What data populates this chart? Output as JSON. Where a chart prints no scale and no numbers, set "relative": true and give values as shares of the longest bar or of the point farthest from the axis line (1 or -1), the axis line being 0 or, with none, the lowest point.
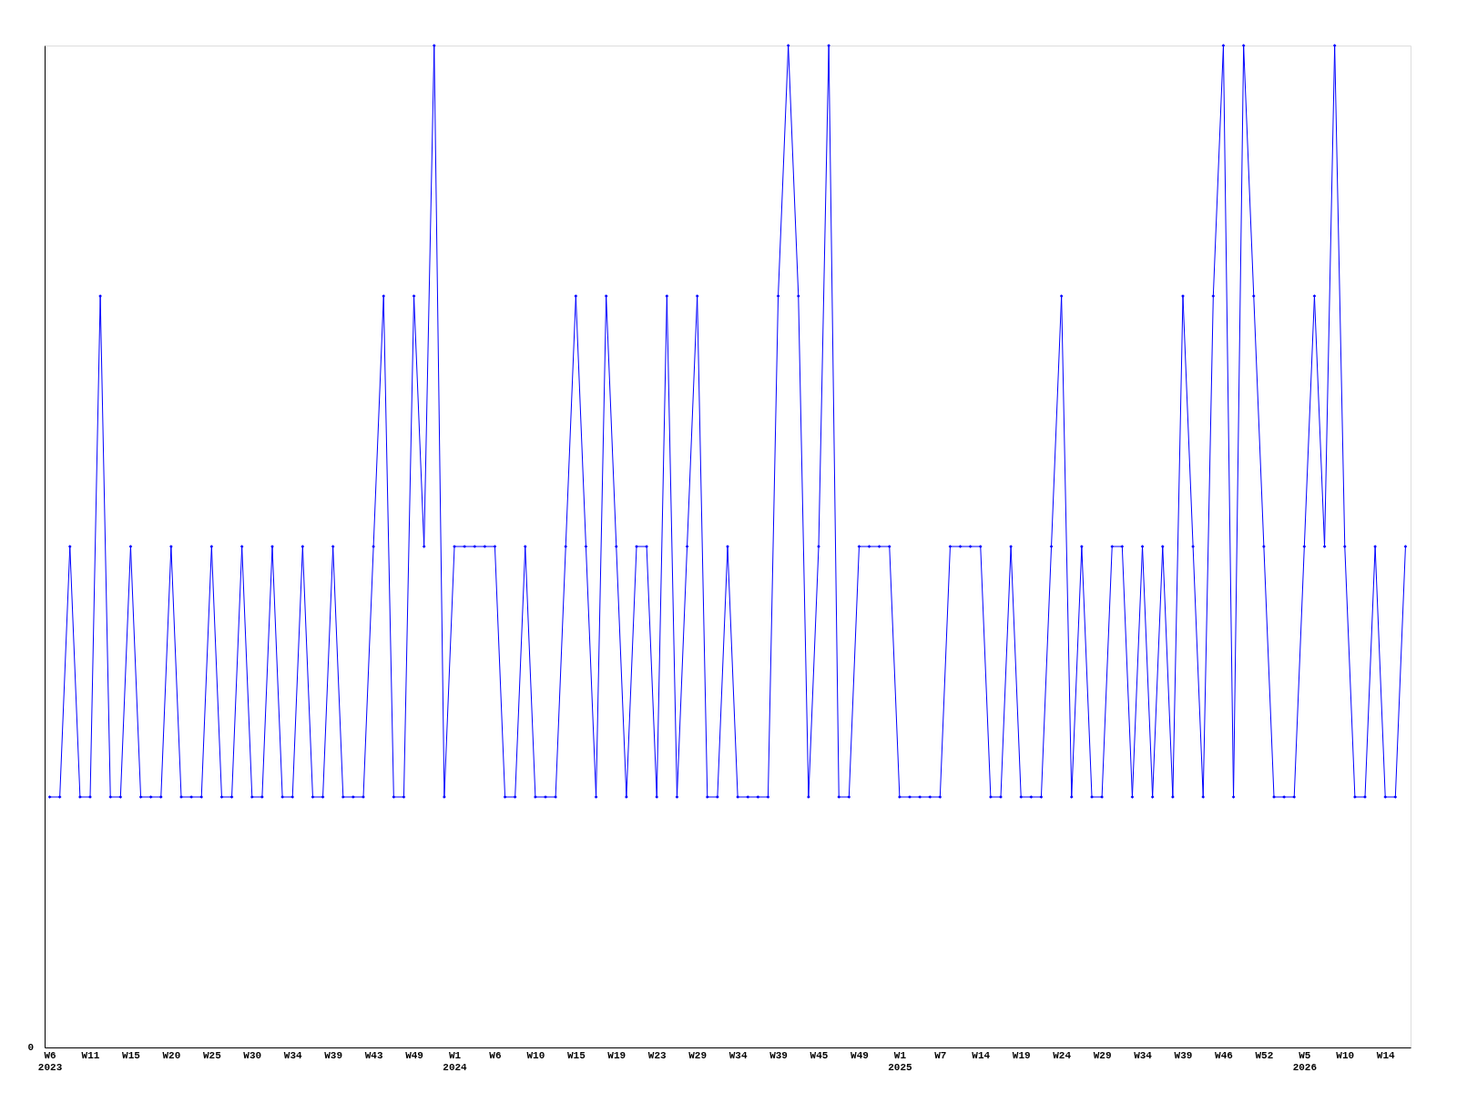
{
  "chart_data": {
    "type": "line",
    "relative": true,
    "annotations": [
      "0"
    ],
    "color": "#0000ff",
    "marker": "diamond",
    "line_style": "solid",
    "grid": false,
    "categories": [
      "W6\n2023",
      null,
      null,
      null,
      "W11",
      null,
      null,
      null,
      "W15",
      null,
      null,
      null,
      "W20",
      null,
      null,
      null,
      "W25",
      null,
      null,
      null,
      "W30",
      null,
      null,
      null,
      "W34",
      null,
      null,
      null,
      "W39",
      null,
      null,
      null,
      "W43",
      null,
      null,
      null,
      "W49",
      null,
      null,
      null,
      "W1\n2024",
      null,
      null,
      null,
      "W6",
      null,
      null,
      null,
      "W10",
      null,
      null,
      null,
      "W15",
      null,
      null,
      null,
      "W19",
      null,
      null,
      null,
      "W23",
      null,
      null,
      null,
      "W29",
      null,
      null,
      null,
      "W34",
      null,
      null,
      null,
      "W39",
      null,
      null,
      null,
      "W45",
      null,
      null,
      null,
      "W49",
      null,
      null,
      null,
      "W1\n2025",
      null,
      null,
      null,
      "W7",
      null,
      null,
      null,
      "W14",
      null,
      null,
      null,
      "W19",
      null,
      null,
      null,
      "W24",
      null,
      null,
      null,
      "W29",
      null,
      null,
      null,
      "W34",
      null,
      null,
      null,
      "W39",
      null,
      null,
      null,
      "W46",
      null,
      null,
      null,
      "W52",
      null,
      null,
      null,
      "W5\n2026",
      null,
      null,
      null,
      "W10",
      null,
      null,
      null,
      "W14",
      null,
      null
    ],
    "values": [
      0.25,
      0.25,
      0.5,
      0.25,
      0.25,
      0.75,
      0.25,
      0.25,
      0.5,
      0.25,
      0.25,
      0.25,
      0.5,
      0.25,
      0.25,
      0.25,
      0.5,
      0.25,
      0.25,
      0.5,
      0.25,
      0.25,
      0.5,
      0.25,
      0.25,
      0.5,
      0.25,
      0.25,
      0.5,
      0.25,
      0.25,
      0.25,
      0.5,
      0.75,
      0.25,
      0.25,
      0.75,
      0.5,
      1,
      0.25,
      0.5,
      0.5,
      0.5,
      0.5,
      0.5,
      0.25,
      0.25,
      0.5,
      0.25,
      0.25,
      0.25,
      0.5,
      0.75,
      0.5,
      0.25,
      0.75,
      0.5,
      0.25,
      0.5,
      0.5,
      0.25,
      0.75,
      0.25,
      0.5,
      0.75,
      0.25,
      0.25,
      0.5,
      0.25,
      0.25,
      0.25,
      0.25,
      0.75,
      1,
      0.75,
      0.25,
      0.5,
      1,
      0.25,
      0.25,
      0.5,
      0.5,
      0.5,
      0.5,
      0.25,
      0.25,
      0.25,
      0.25,
      0.25,
      0.5,
      0.5,
      0.5,
      0.5,
      0.25,
      0.25,
      0.5,
      0.25,
      0.25,
      0.25,
      0.5,
      0.75,
      0.25,
      0.5,
      0.25,
      0.25,
      0.5,
      0.5,
      0.25,
      0.5,
      0.25,
      0.5,
      0.25,
      0.75,
      0.5,
      0.25,
      0.75,
      1,
      0.25,
      1,
      0.75,
      0.5,
      0.25,
      0.25,
      0.25,
      0.5,
      0.75,
      0.5,
      1,
      0.5,
      0.25,
      0.25,
      0.5,
      0.25,
      0.25,
      0.5
    ]
  }
}
